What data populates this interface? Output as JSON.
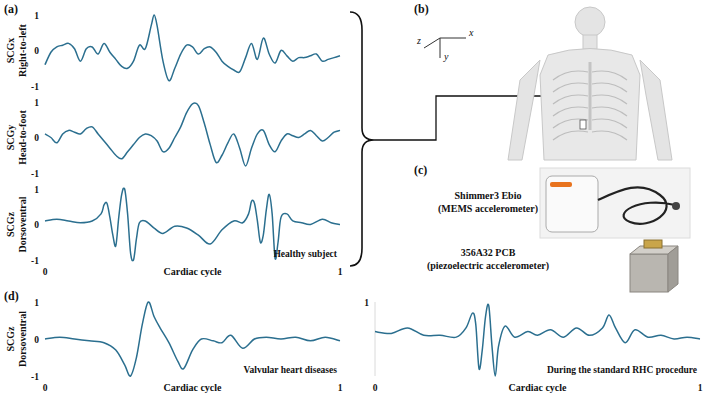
{
  "chart_data": [
    {
      "type": "line",
      "panel": "(a)",
      "ylabel": "SCGx",
      "ylabel_sub": "Right-to-left",
      "color": "#2b6f8f",
      "xlim": [
        0,
        1
      ],
      "ylim": [
        -1,
        1
      ],
      "yticks": [
        -1,
        0,
        1
      ],
      "tick_labels": "y",
      "x": [
        0,
        0.02,
        0.04,
        0.06,
        0.08,
        0.1,
        0.12,
        0.14,
        0.16,
        0.18,
        0.2,
        0.22,
        0.24,
        0.26,
        0.28,
        0.3,
        0.32,
        0.34,
        0.36,
        0.37,
        0.38,
        0.4,
        0.42,
        0.44,
        0.46,
        0.48,
        0.5,
        0.52,
        0.54,
        0.56,
        0.58,
        0.6,
        0.62,
        0.64,
        0.66,
        0.68,
        0.7,
        0.72,
        0.74,
        0.76,
        0.78,
        0.8,
        0.82,
        0.84,
        0.86,
        0.88,
        0.9,
        0.92,
        0.94,
        0.96,
        0.98,
        1
      ],
      "values": [
        -0.4,
        -0.05,
        0.1,
        0.15,
        0.2,
        0.05,
        -0.3,
        0.05,
        0.1,
        -0.1,
        0.2,
        -0.05,
        -0.25,
        -0.45,
        -0.5,
        -0.3,
        0.15,
        0.05,
        0.7,
        1.0,
        0.7,
        -0.3,
        -0.85,
        -0.5,
        -0.1,
        0.15,
        0.1,
        -0.1,
        0.05,
        0.1,
        -0.05,
        -0.3,
        -0.45,
        -0.55,
        -0.6,
        -0.2,
        0.2,
        -0.25,
        0.35,
        -0.1,
        -0.35,
        0.0,
        -0.15,
        -0.3,
        -0.2,
        -0.2,
        -0.15,
        -0.1,
        -0.3,
        -0.25,
        -0.2,
        -0.15
      ]
    },
    {
      "type": "line",
      "ylabel": "SCGy",
      "ylabel_sub": "Head-to-foot",
      "color": "#2b6f8f",
      "xlim": [
        0,
        1
      ],
      "ylim": [
        -1,
        1
      ],
      "yticks": [
        -1,
        0,
        1
      ],
      "tick_labels": "y",
      "x": [
        0,
        0.02,
        0.04,
        0.06,
        0.08,
        0.1,
        0.12,
        0.14,
        0.16,
        0.18,
        0.2,
        0.22,
        0.24,
        0.26,
        0.28,
        0.3,
        0.32,
        0.34,
        0.36,
        0.38,
        0.4,
        0.42,
        0.44,
        0.46,
        0.48,
        0.5,
        0.52,
        0.54,
        0.56,
        0.58,
        0.6,
        0.62,
        0.64,
        0.66,
        0.68,
        0.7,
        0.72,
        0.74,
        0.76,
        0.78,
        0.8,
        0.82,
        0.84,
        0.86,
        0.88,
        0.9,
        0.92,
        0.94,
        0.96,
        0.98,
        1
      ],
      "values": [
        0.1,
        0.0,
        -0.15,
        0.1,
        0.2,
        0.15,
        0.1,
        0.25,
        0.3,
        0.1,
        -0.1,
        -0.3,
        -0.5,
        -0.6,
        -0.4,
        -0.2,
        0.0,
        0.1,
        0.05,
        -0.1,
        -0.4,
        -0.3,
        0.0,
        0.3,
        0.7,
        0.95,
        0.9,
        0.4,
        -0.2,
        -0.7,
        -0.5,
        -0.15,
        0.1,
        -0.3,
        -0.8,
        -0.3,
        0.1,
        0.2,
        -0.2,
        -0.4,
        -0.1,
        0.1,
        0.05,
        0.0,
        0.1,
        0.2,
        0.05,
        -0.1,
        0.0,
        0.15,
        0.2
      ]
    },
    {
      "type": "line",
      "ylabel": "SCGz",
      "ylabel_sub": "Dorsoventral",
      "xlabel": "Cardiac cycle",
      "annotation": "Healthy subject",
      "color": "#2b6f8f",
      "xlim": [
        0,
        1
      ],
      "ylim": [
        -1,
        1
      ],
      "xticks": [
        0,
        1
      ],
      "yticks": [
        -1,
        0,
        1
      ],
      "x": [
        0,
        0.04,
        0.08,
        0.12,
        0.16,
        0.19,
        0.2,
        0.21,
        0.22,
        0.23,
        0.24,
        0.25,
        0.26,
        0.27,
        0.28,
        0.29,
        0.3,
        0.31,
        0.32,
        0.34,
        0.37,
        0.4,
        0.44,
        0.48,
        0.52,
        0.56,
        0.6,
        0.64,
        0.67,
        0.69,
        0.7,
        0.71,
        0.72,
        0.73,
        0.74,
        0.75,
        0.76,
        0.77,
        0.78,
        0.79,
        0.8,
        0.82,
        0.84,
        0.87,
        0.9,
        0.94,
        0.97,
        1
      ],
      "values": [
        0.1,
        0.15,
        0.1,
        0.05,
        0.1,
        0.3,
        0.55,
        0.6,
        0.2,
        -0.3,
        -0.6,
        0.2,
        0.85,
        1.0,
        0.3,
        -0.8,
        -1.0,
        -0.4,
        0.05,
        0.1,
        -0.1,
        -0.25,
        -0.05,
        -0.1,
        -0.3,
        -0.55,
        -0.15,
        0.1,
        0.05,
        0.3,
        0.65,
        0.6,
        0.1,
        -0.5,
        -0.3,
        0.4,
        0.85,
        0.3,
        -0.95,
        -0.5,
        0.2,
        0.3,
        0.1,
        0.05,
        0.0,
        0.15,
        0.05,
        0.0
      ]
    },
    {
      "type": "line",
      "panel": "(d)",
      "ylabel": "SCGz",
      "ylabel_sub": "Dorsoventral",
      "xlabel": "Cardiac cycle",
      "annotation": "Valvular heart diseases",
      "color": "#2b6f8f",
      "xlim": [
        0,
        1
      ],
      "ylim": [
        -1,
        1
      ],
      "xticks": [
        0,
        1
      ],
      "yticks": [
        -1,
        0,
        1
      ],
      "x": [
        0,
        0.05,
        0.1,
        0.15,
        0.2,
        0.24,
        0.27,
        0.29,
        0.31,
        0.33,
        0.35,
        0.37,
        0.39,
        0.42,
        0.45,
        0.47,
        0.5,
        0.53,
        0.57,
        0.6,
        0.63,
        0.67,
        0.71,
        0.75,
        0.8,
        0.85,
        0.9,
        0.95,
        1
      ],
      "values": [
        0.0,
        0.05,
        0.0,
        -0.05,
        -0.1,
        -0.3,
        -0.7,
        -1.0,
        -0.5,
        0.4,
        1.0,
        0.6,
        0.3,
        -0.1,
        -0.6,
        -0.8,
        -0.3,
        0.0,
        -0.05,
        -0.1,
        0.1,
        -0.25,
        0.0,
        0.05,
        0.0,
        0.05,
        -0.05,
        0.05,
        -0.05
      ]
    },
    {
      "type": "line",
      "xlabel": "Cardiac cycle",
      "annotation": "During the standard RHC procedure",
      "color": "#2b6f8f",
      "xlim": [
        0,
        1
      ],
      "ylim": [
        -1,
        1
      ],
      "xticks": [
        0,
        1
      ],
      "yticks": [
        1
      ],
      "x": [
        0,
        0.05,
        0.1,
        0.15,
        0.2,
        0.25,
        0.28,
        0.3,
        0.31,
        0.32,
        0.33,
        0.34,
        0.35,
        0.36,
        0.37,
        0.38,
        0.4,
        0.43,
        0.47,
        0.5,
        0.54,
        0.58,
        0.62,
        0.66,
        0.7,
        0.72,
        0.74,
        0.77,
        0.8,
        0.84,
        0.88,
        0.92,
        0.96,
        1
      ],
      "values": [
        0.2,
        0.15,
        0.3,
        0.1,
        0.1,
        0.05,
        0.3,
        0.7,
        0.4,
        -0.8,
        -0.3,
        0.6,
        0.9,
        -0.2,
        -1.0,
        -0.2,
        0.35,
        0.05,
        0.2,
        0.1,
        0.25,
        0.05,
        0.3,
        0.1,
        0.3,
        0.65,
        0.3,
        -0.1,
        0.25,
        0.05,
        0.1,
        0.0,
        0.05,
        0.0
      ]
    }
  ],
  "figure": {
    "body_panel": {
      "label": "(b)",
      "axes": [
        "x",
        "y",
        "z"
      ]
    },
    "device_panel": {
      "label": "(c)",
      "devices": [
        {
          "name": "Shimmer3 Ebio",
          "detail": "(MEMS accelerometer)"
        },
        {
          "name": "356A32 PCB",
          "detail": "(piezoelectric accelerometer)"
        }
      ]
    }
  }
}
